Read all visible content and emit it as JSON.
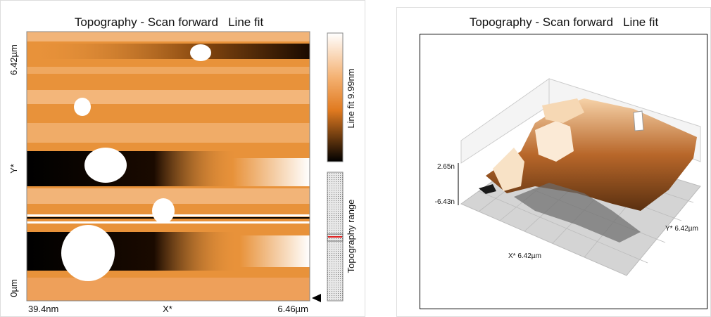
{
  "left_panel": {
    "title": "Topography - Scan forward   Line fit",
    "y_axis": {
      "top": "6.42µm",
      "middle": "Y*",
      "bottom": "0µm"
    },
    "x_axis": {
      "left": "39.4nm",
      "middle": "X*",
      "right": "6.46µm"
    },
    "colorbar_label": "Line fit 9.99nm",
    "range_label": "Topography range"
  },
  "right_panel": {
    "title": "Topography - Scan forward   Line fit",
    "z_top": "2.65n",
    "z_bottom": "-6.43n",
    "x_label": "X* 6.42µm",
    "y_label": "Y* 6.42µm"
  }
}
